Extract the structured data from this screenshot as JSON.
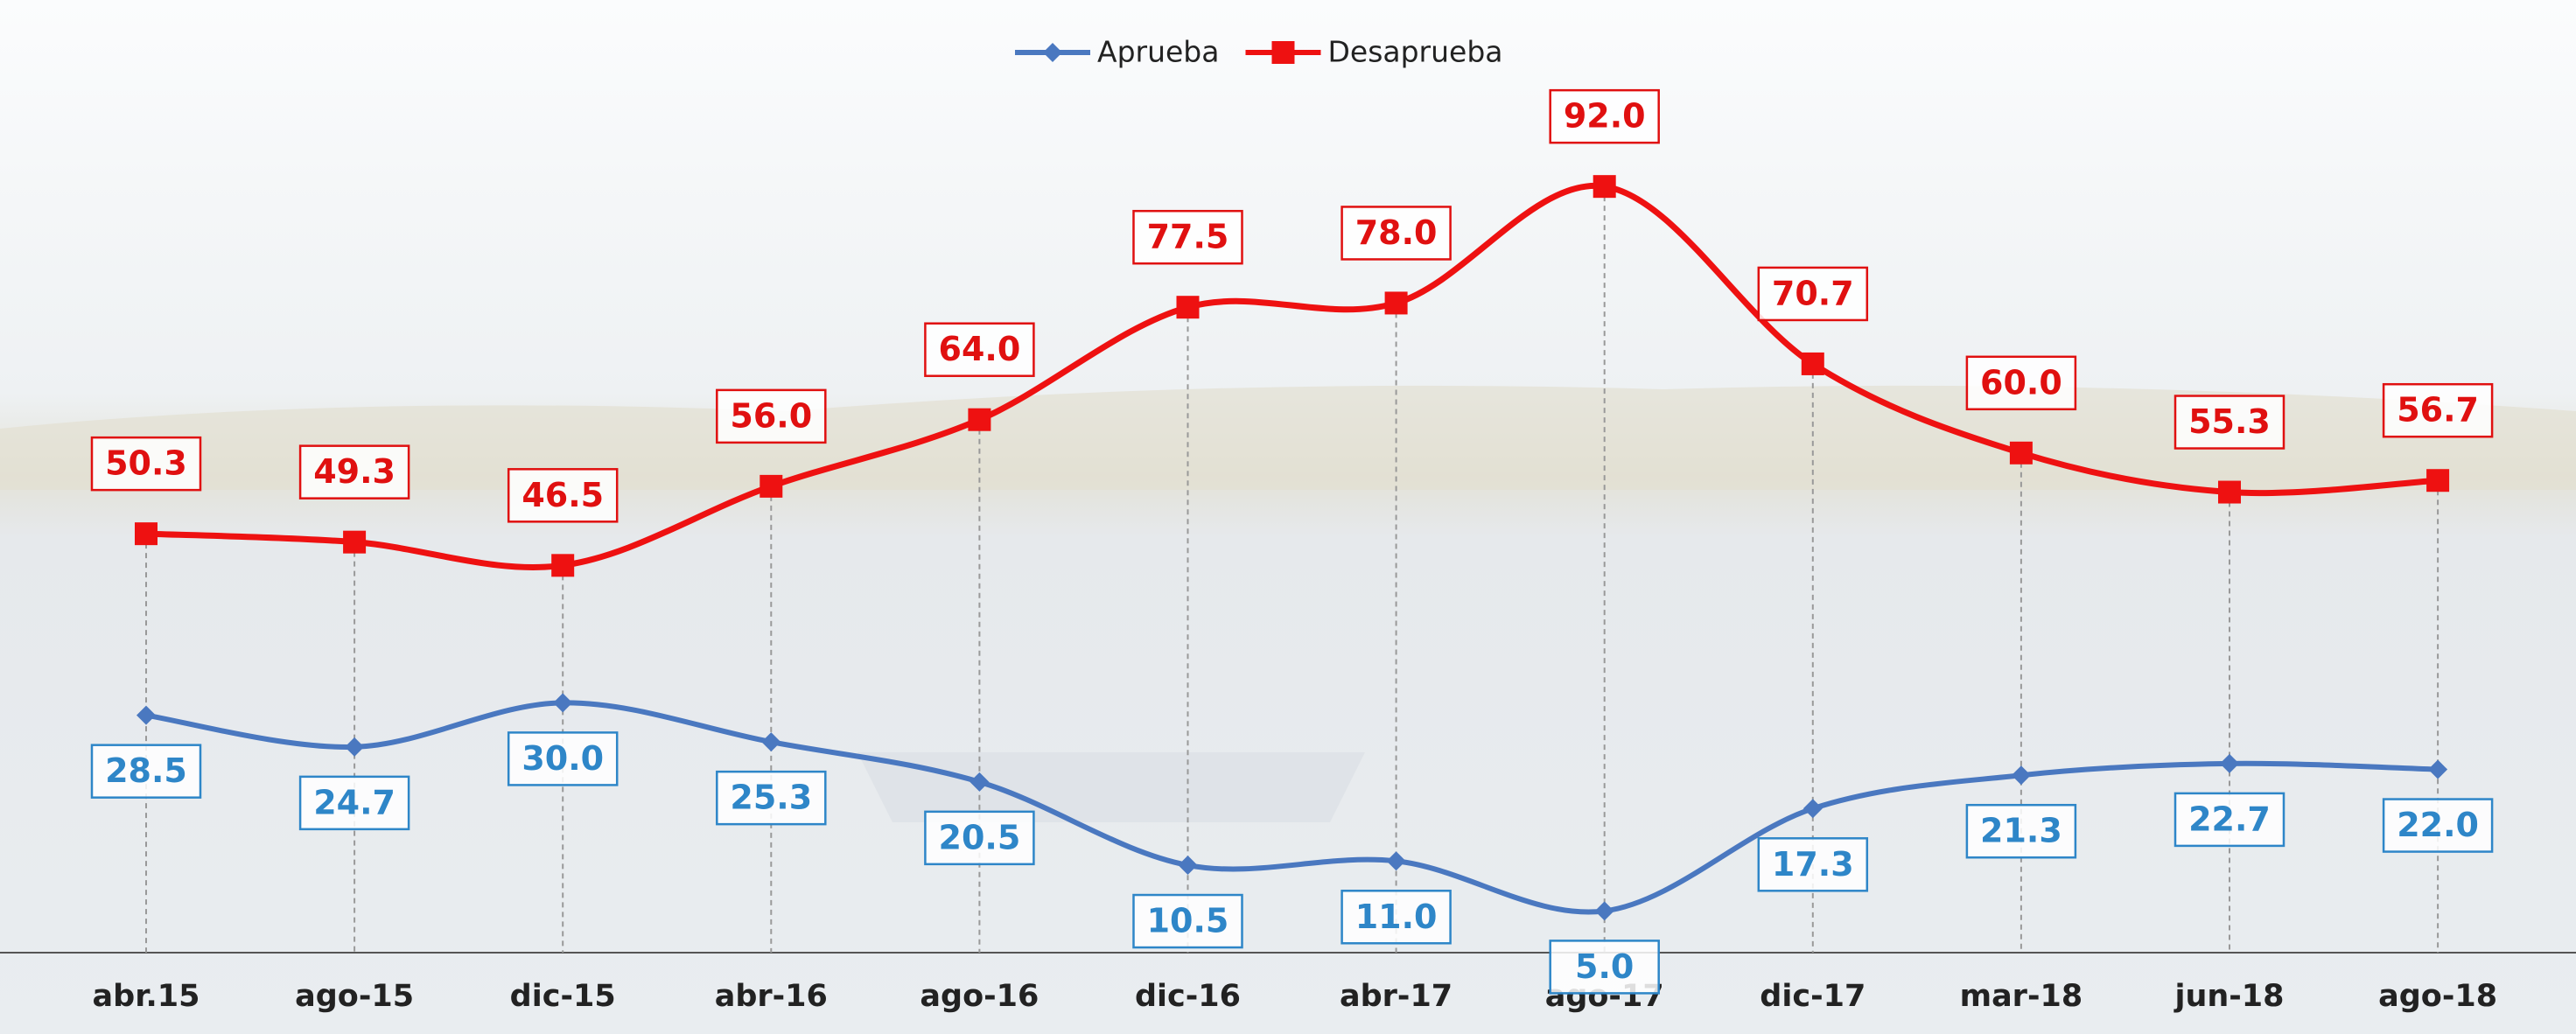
{
  "chart_data": {
    "type": "line",
    "categories": [
      "abr.15",
      "ago-15",
      "dic-15",
      "abr-16",
      "ago-16",
      "dic-16",
      "abr-17",
      "ago-17",
      "dic-17",
      "mar-18",
      "jun-18",
      "ago-18"
    ],
    "series": [
      {
        "name": "Aprueba",
        "color": "#4a78c0",
        "label_color": "#2e86c8",
        "values": [
          28.5,
          24.7,
          30.0,
          25.3,
          20.5,
          10.5,
          11.0,
          5.0,
          17.3,
          21.3,
          22.7,
          22.0
        ],
        "value_labels": [
          "28.5",
          "24.7",
          "30.0",
          "25.3",
          "20.5",
          "10.5",
          "11.0",
          "5.0",
          "17.3",
          "21.3",
          "22.7",
          "22.0"
        ]
      },
      {
        "name": "Desaprueba",
        "color": "#ee1111",
        "label_color": "#e01010",
        "values": [
          50.3,
          49.3,
          46.5,
          56.0,
          64.0,
          77.5,
          78.0,
          92.0,
          70.7,
          60.0,
          55.3,
          56.7
        ],
        "value_labels": [
          "50.3",
          "49.3",
          "46.5",
          "56.0",
          "64.0",
          "77.5",
          "78.0",
          "92.0",
          "70.7",
          "60.0",
          "55.3",
          "56.7"
        ]
      }
    ]
  }
}
